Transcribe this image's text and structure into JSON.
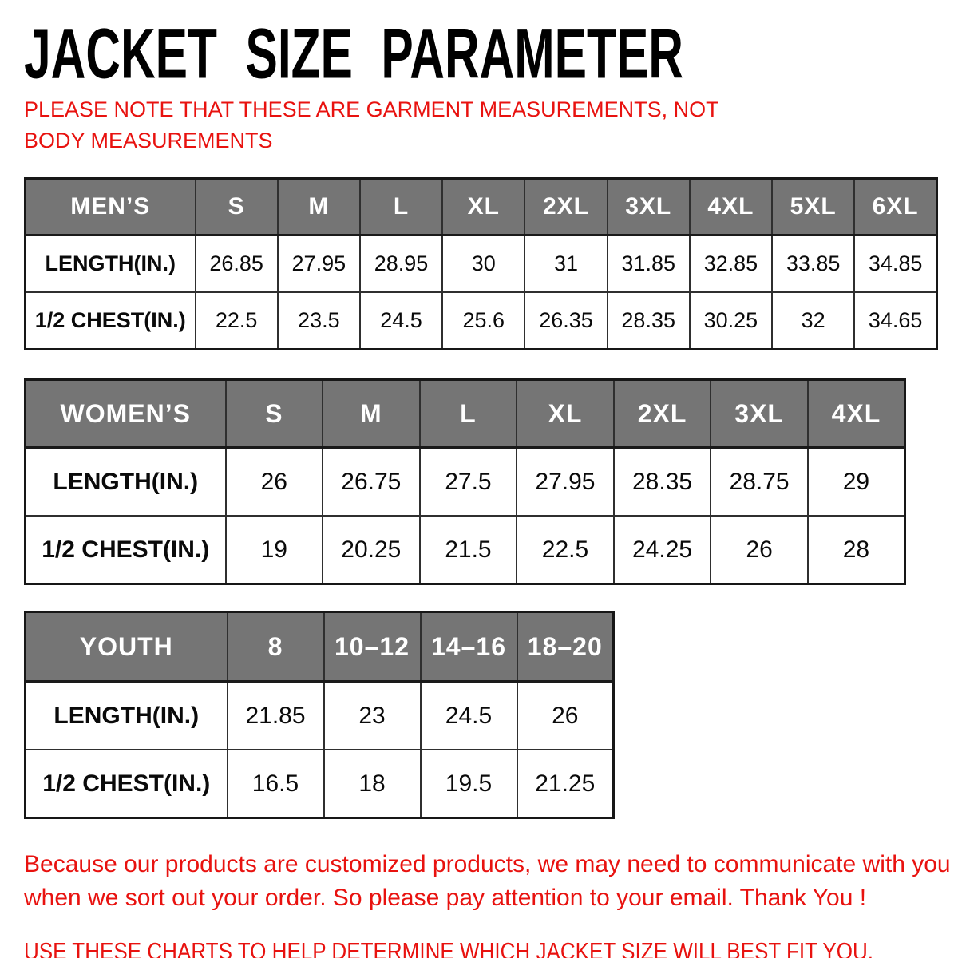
{
  "title": "JACKET SIZE PARAMETER",
  "note": "PLEASE NOTE THAT THESE ARE GARMENT MEASUREMENTS, NOT BODY MEASUREMENTS",
  "colors": {
    "header_bg": "#757575",
    "header_text": "#ffffff",
    "red_text": "#e8120f",
    "table_border": "#2f2f2f",
    "body_text": "#0a0a0a"
  },
  "tables": [
    {
      "name": "mens",
      "header": [
        "MEN’S",
        "S",
        "M",
        "L",
        "XL",
        "2XL",
        "3XL",
        "4XL",
        "5XL",
        "6XL"
      ],
      "rows": [
        [
          "LENGTH(IN.)",
          "26.85",
          "27.95",
          "28.95",
          "30",
          "31",
          "31.85",
          "32.85",
          "33.85",
          "34.85"
        ],
        [
          "1/2 CHEST(IN.)",
          "22.5",
          "23.5",
          "24.5",
          "25.6",
          "26.35",
          "28.35",
          "30.25",
          "32",
          "34.65"
        ]
      ]
    },
    {
      "name": "womens",
      "header": [
        "WOMEN’S",
        "S",
        "M",
        "L",
        "XL",
        "2XL",
        "3XL",
        "4XL"
      ],
      "rows": [
        [
          "LENGTH(IN.)",
          "26",
          "26.75",
          "27.5",
          "27.95",
          "28.35",
          "28.75",
          "29"
        ],
        [
          "1/2 CHEST(IN.)",
          "19",
          "20.25",
          "21.5",
          "22.5",
          "24.25",
          "26",
          "28"
        ]
      ]
    },
    {
      "name": "youth",
      "header": [
        "YOUTH",
        "8",
        "10–12",
        "14–16",
        "18–20"
      ],
      "rows": [
        [
          "LENGTH(IN.)",
          "21.85",
          "23",
          "24.5",
          "26"
        ],
        [
          "1/2 CHEST(IN.)",
          "16.5",
          "18",
          "19.5",
          "21.25"
        ]
      ]
    }
  ],
  "footer": {
    "paragraph": "Because our products are customized products, we may need to communicate with you when we sort out your order. So please pay attention to your email. Thank You !",
    "advice": "USE THESE CHARTS TO HELP DETERMINE WHICH JACKET SIZE WILL BEST FIT YOU."
  }
}
